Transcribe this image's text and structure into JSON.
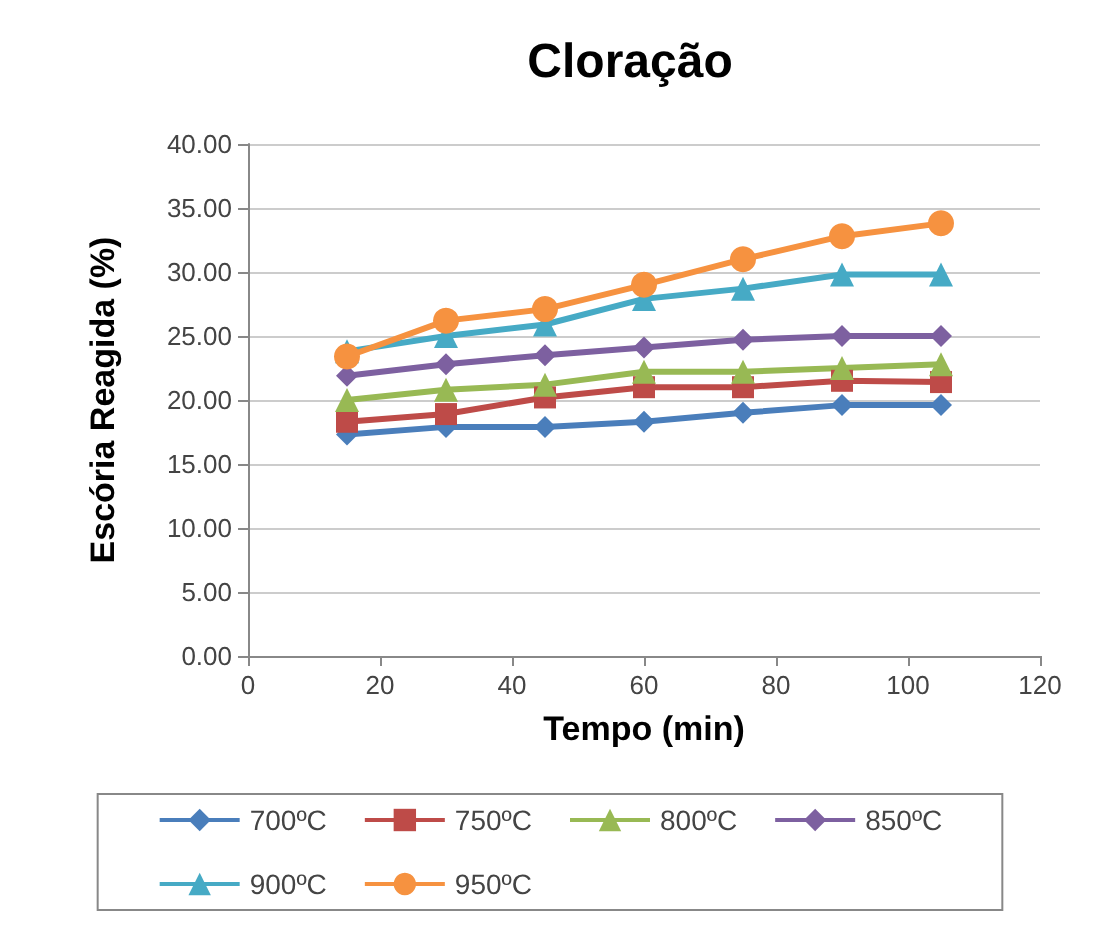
{
  "chart_data": {
    "type": "line",
    "title": "Cloração",
    "xlabel": "Tempo (min)",
    "ylabel": "Escória Reagida (%)",
    "x": [
      15,
      30,
      45,
      60,
      75,
      90,
      105
    ],
    "xlim": [
      0,
      120
    ],
    "xticks": [
      0,
      20,
      40,
      60,
      80,
      100,
      120
    ],
    "ylim": [
      0,
      40
    ],
    "yticks": [
      {
        "value": 0,
        "label": "0.00"
      },
      {
        "value": 5,
        "label": "5.00"
      },
      {
        "value": 10,
        "label": "10.00"
      },
      {
        "value": 15,
        "label": "15.00"
      },
      {
        "value": 20,
        "label": "20.00"
      },
      {
        "value": 25,
        "label": "25.00"
      },
      {
        "value": 30,
        "label": "30.00"
      },
      {
        "value": 35,
        "label": "35.00"
      },
      {
        "value": 40,
        "label": "40.00"
      }
    ],
    "grid": "y",
    "legend": "bottom",
    "series": [
      {
        "name": "700ºC",
        "color": "#4a7ebb",
        "marker": "diamond",
        "values": [
          17.3,
          17.9,
          17.9,
          18.3,
          19.0,
          19.6,
          19.6
        ]
      },
      {
        "name": "750ºC",
        "color": "#be4b48",
        "marker": "square",
        "values": [
          18.3,
          18.9,
          20.2,
          21.0,
          21.0,
          21.5,
          21.4
        ]
      },
      {
        "name": "800ºC",
        "color": "#98b954",
        "marker": "triangle",
        "values": [
          20.0,
          20.8,
          21.2,
          22.2,
          22.2,
          22.5,
          22.8
        ]
      },
      {
        "name": "850ºC",
        "color": "#7d60a0",
        "marker": "diamond",
        "values": [
          21.9,
          22.8,
          23.5,
          24.1,
          24.7,
          25.0,
          25.0
        ]
      },
      {
        "name": "900ºC",
        "color": "#46aac5",
        "marker": "triangle",
        "values": [
          23.8,
          25.0,
          25.9,
          27.9,
          28.7,
          29.8,
          29.8
        ]
      },
      {
        "name": "950ºC",
        "color": "#f69240",
        "marker": "circle",
        "values": [
          23.4,
          26.2,
          27.1,
          29.0,
          31.0,
          32.8,
          33.8
        ]
      }
    ]
  }
}
